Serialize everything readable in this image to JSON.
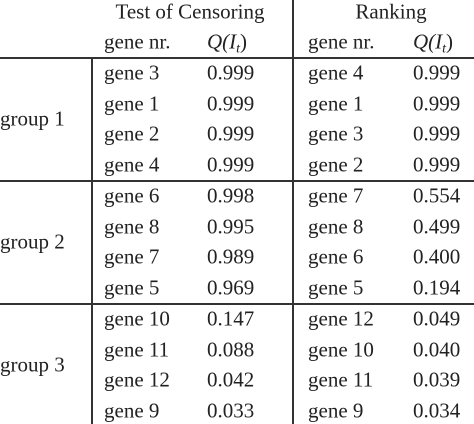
{
  "header": {
    "col_groups": [
      "Test of Censoring",
      "Ranking"
    ],
    "gene_col": "gene nr.",
    "q_col": {
      "main": "Q(I",
      "sub": "t",
      "close": ")"
    }
  },
  "groups": [
    {
      "label": "group 1",
      "rows": [
        [
          "gene 3",
          "0.999",
          "gene 4",
          "0.999"
        ],
        [
          "gene 1",
          "0.999",
          "gene 1",
          "0.999"
        ],
        [
          "gene 2",
          "0.999",
          "gene 3",
          "0.999"
        ],
        [
          "gene 4",
          "0.999",
          "gene 2",
          "0.999"
        ]
      ]
    },
    {
      "label": "group 2",
      "rows": [
        [
          "gene 6",
          "0.998",
          "gene 7",
          "0.554"
        ],
        [
          "gene 8",
          "0.995",
          "gene 8",
          "0.499"
        ],
        [
          "gene 7",
          "0.989",
          "gene 6",
          "0.400"
        ],
        [
          "gene 5",
          "0.969",
          "gene 5",
          "0.194"
        ]
      ]
    },
    {
      "label": "group 3",
      "rows": [
        [
          "gene 10",
          "0.147",
          "gene 12",
          "0.049"
        ],
        [
          "gene 11",
          "0.088",
          "gene 10",
          "0.040"
        ],
        [
          "gene 12",
          "0.042",
          "gene 11",
          "0.039"
        ],
        [
          "gene 9",
          "0.033",
          "gene 9",
          "0.034"
        ]
      ]
    }
  ]
}
